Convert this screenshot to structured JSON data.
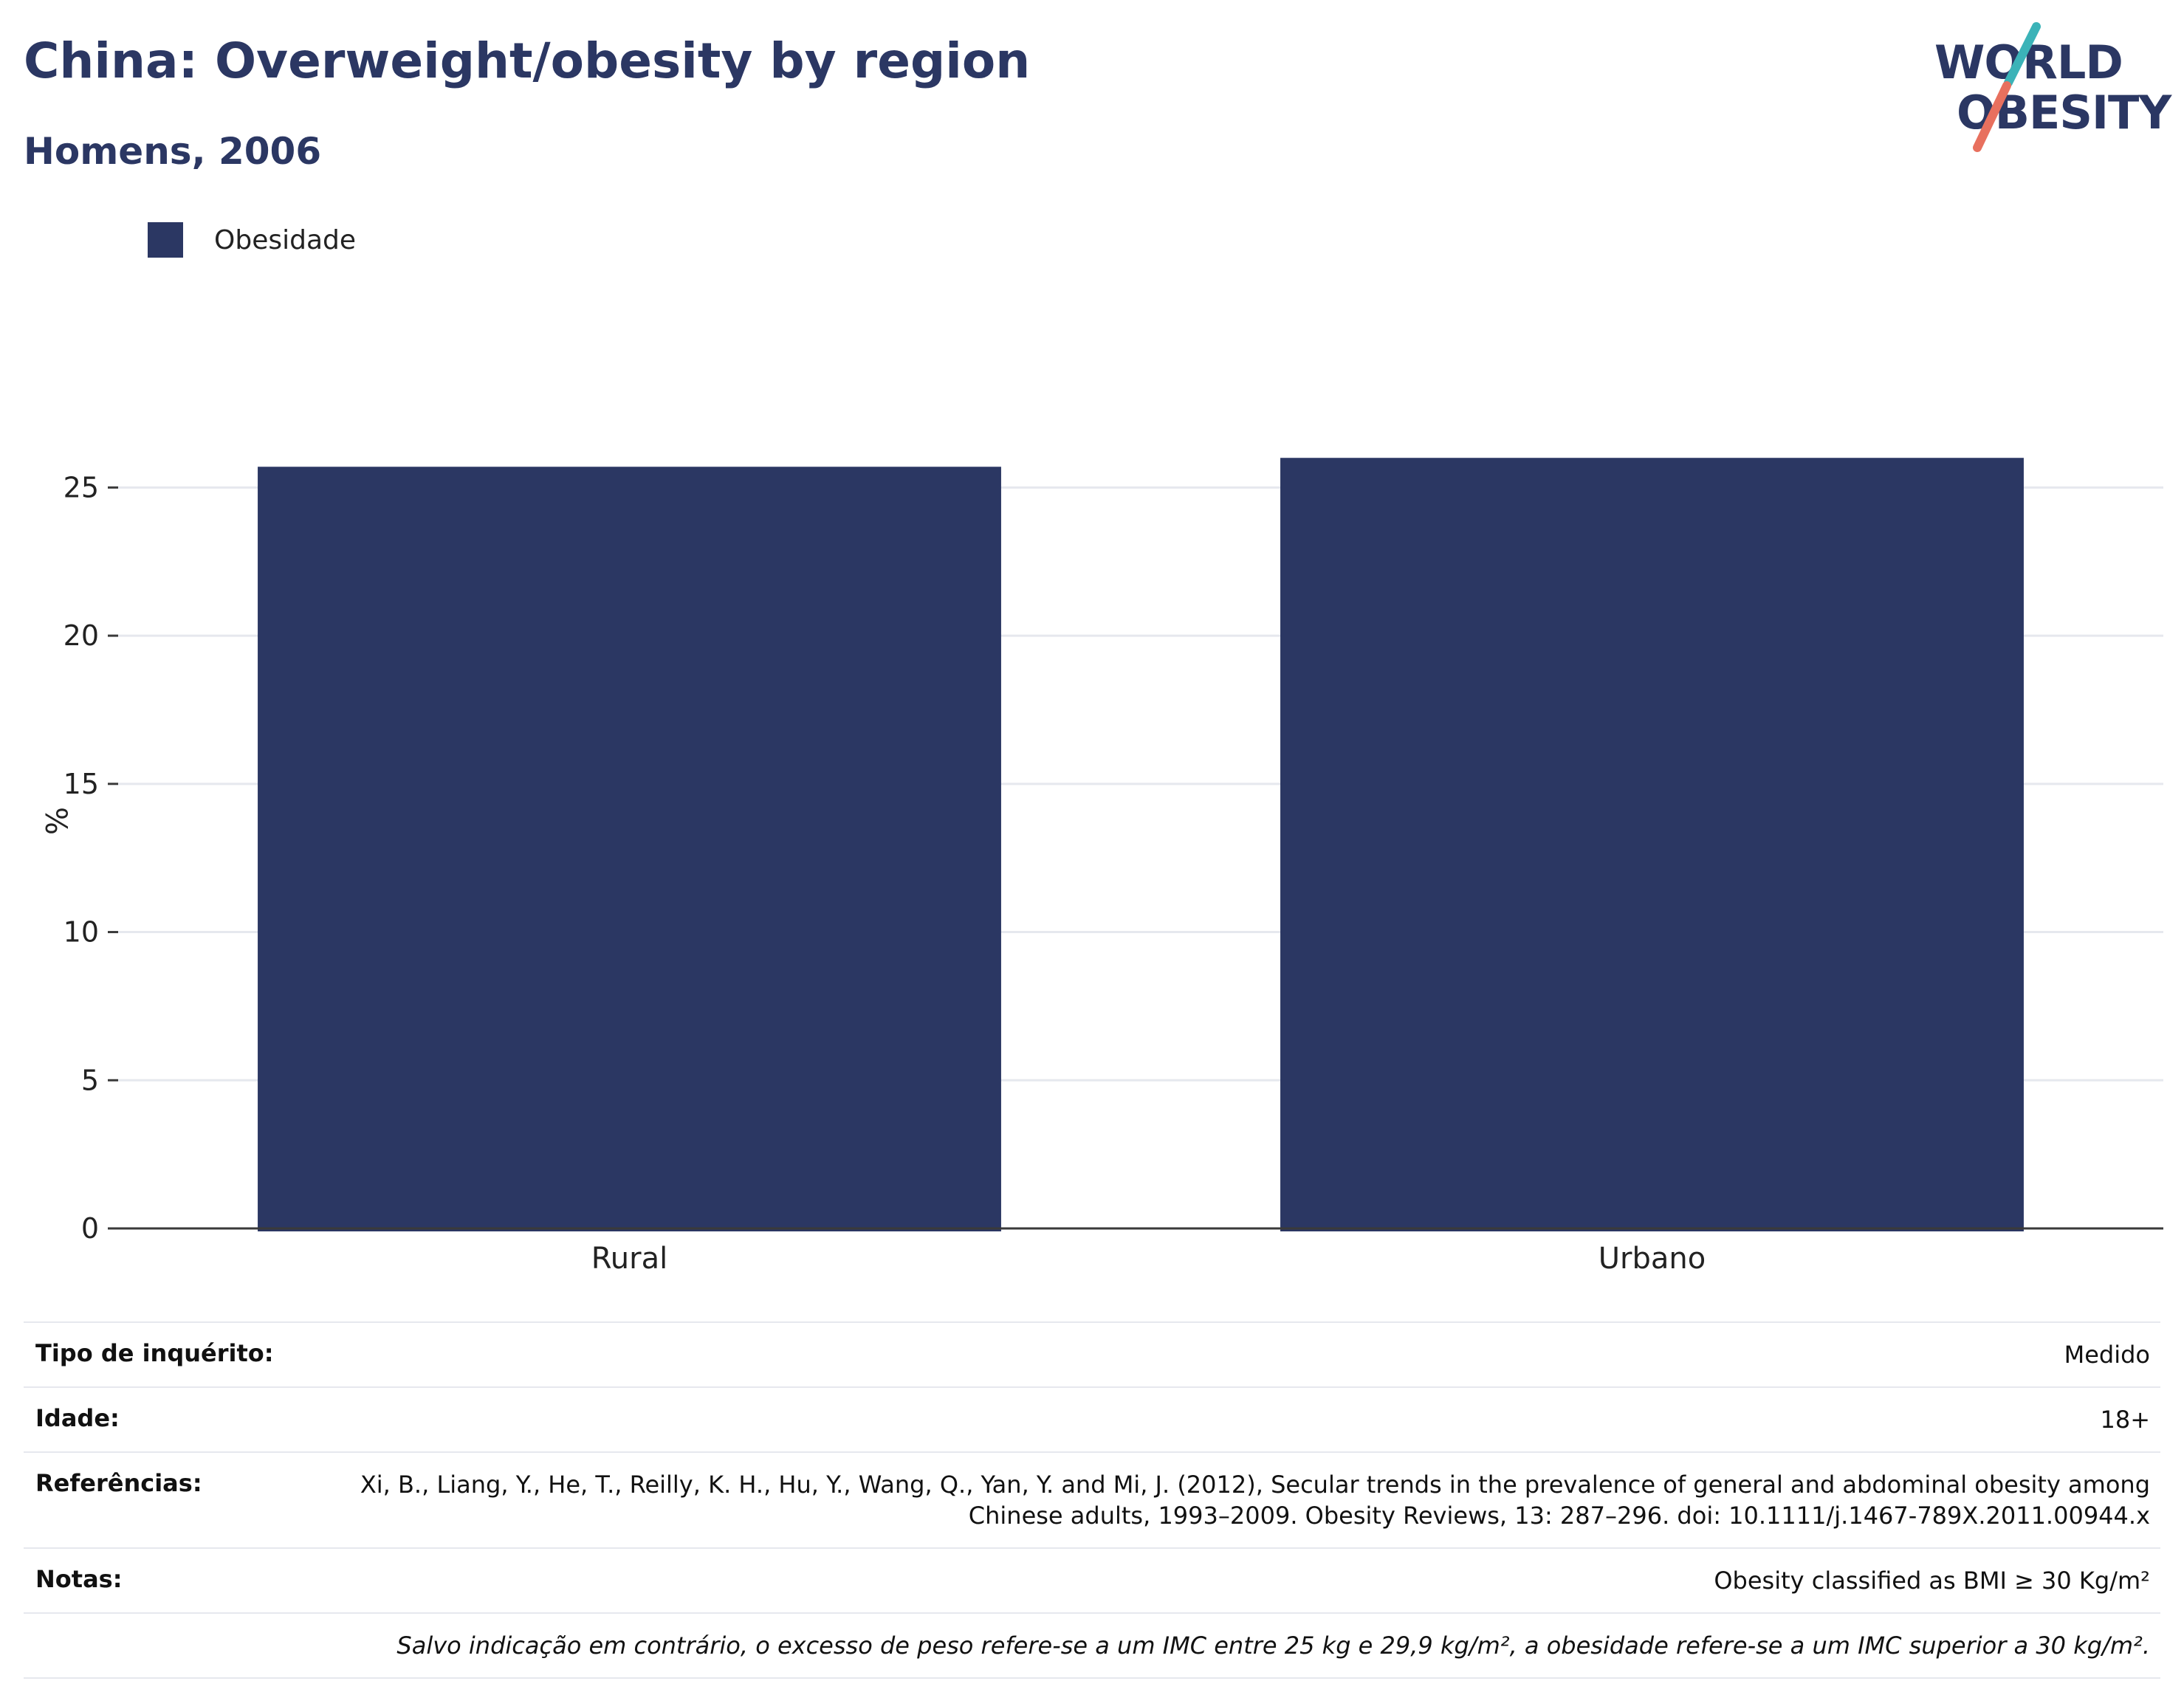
{
  "header": {
    "title": "China: Overweight/obesity by region",
    "subtitle": "Homens, 2006"
  },
  "logo": {
    "line1": "WORLD",
    "line2": "OBESITY",
    "colors": {
      "navy": "#2b3763",
      "teal": "#3bb3b8",
      "coral": "#e8705e"
    }
  },
  "chart_data": {
    "type": "bar",
    "categories": [
      "Rural",
      "Urbano"
    ],
    "series": [
      {
        "name": "Obesidade",
        "values": [
          25.7,
          26.0
        ],
        "color": "#2b3763"
      }
    ],
    "title": "China: Overweight/obesity by region",
    "subtitle": "Homens, 2006",
    "xlabel": "",
    "ylabel": "%",
    "ylim": [
      0,
      27.5
    ],
    "yticks": [
      0,
      5,
      10,
      15,
      20,
      25
    ],
    "grid": true,
    "legend": "top-left"
  },
  "info": {
    "rows": [
      {
        "key": "Tipo de inquérito:",
        "value": "Medido"
      },
      {
        "key": "Idade:",
        "value": "18+"
      },
      {
        "key": "Referências:",
        "value": "Xi, B., Liang, Y., He, T., Reilly, K. H., Hu, Y., Wang, Q., Yan, Y. and Mi, J. (2012), Secular trends in the prevalence of general and abdominal obesity among Chinese adults, 1993–2009. Obesity Reviews, 13: 287–296. doi: 10.1111/j.1467-789X.2011.00944.x"
      },
      {
        "key": "Notas:",
        "value": "Obesity classified as BMI ≥ 30 Kg/m²"
      }
    ],
    "footnote": "Salvo indicação em contrário, o excesso de peso refere-se a um IMC entre 25 kg e 29,9 kg/m², a obesidade refere-se a um IMC superior a 30 kg/m²."
  }
}
